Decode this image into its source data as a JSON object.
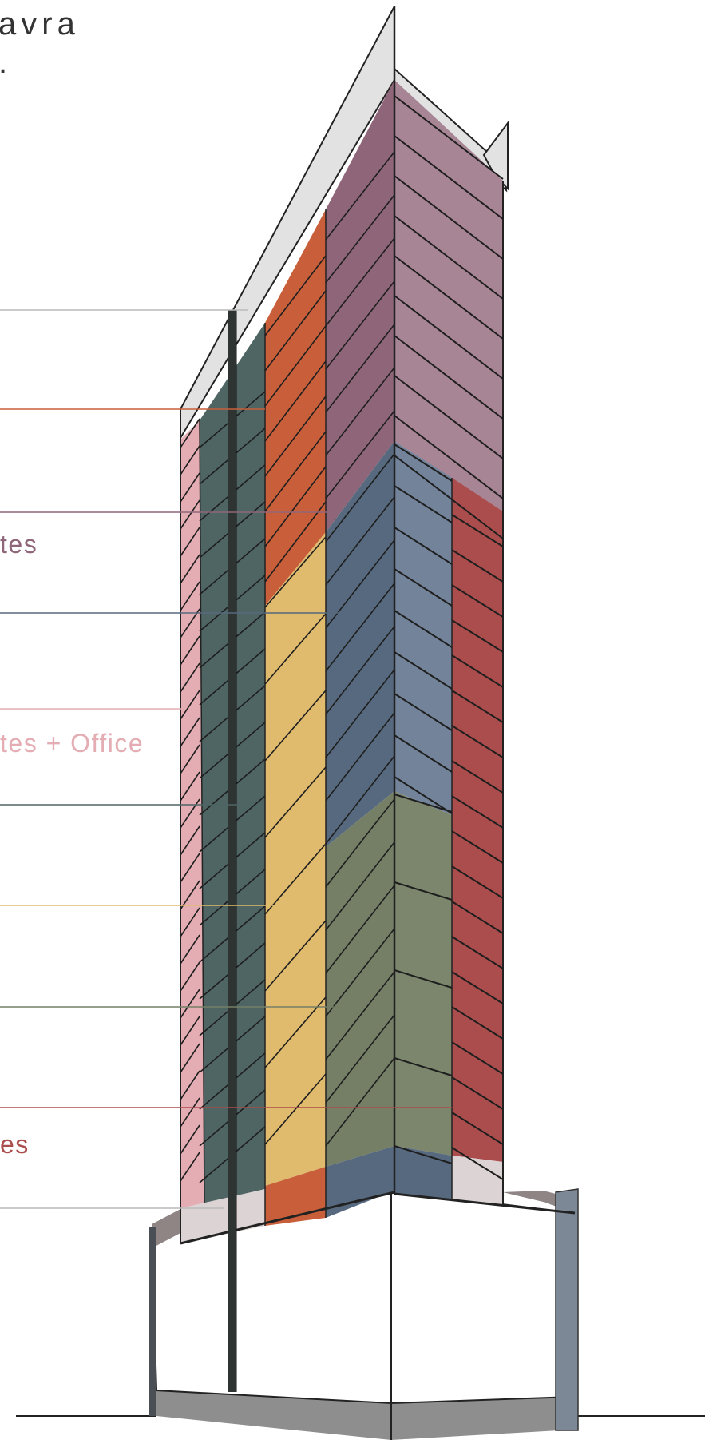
{
  "header": {
    "title_line_1": "avra",
    "title_line_2": "."
  },
  "labels": {
    "level_purple": "tes",
    "level_pink": "tes + Office",
    "level_red": "es"
  },
  "colors": {
    "pink": "#e3adb3",
    "dark_green": "#4e6564",
    "orange": "#c85f3a",
    "purple": "#8f6679",
    "mauve": "#a88594",
    "slate_blue": "#56697f",
    "blue_grey": "#72839a",
    "yellow": "#e0bb6d",
    "olive": "#747f66",
    "olive_light": "#7b866c",
    "red": "#aa4d4c",
    "light_grey": "#e2e2e2",
    "podium_grey": "#8e8e8e",
    "ground": "#222222"
  }
}
